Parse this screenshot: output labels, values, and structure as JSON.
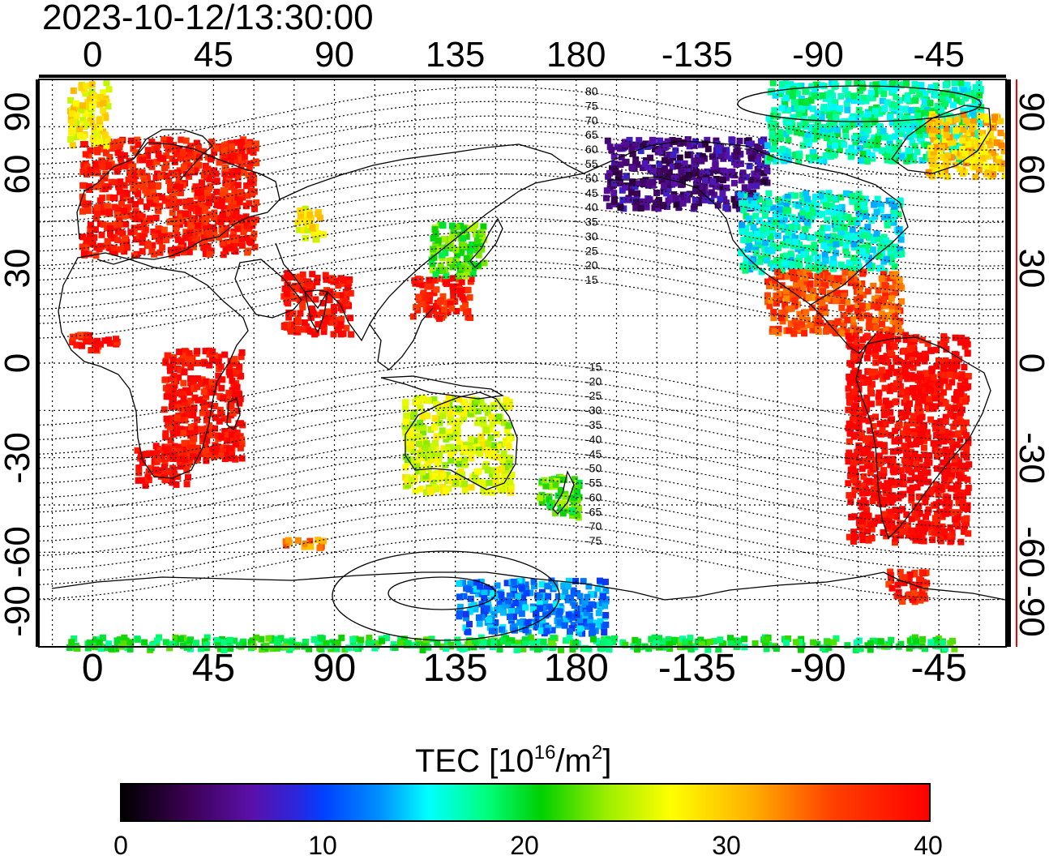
{
  "title": "2023-10-12/13:30:00",
  "lon_ticks": [
    "0",
    "45",
    "90",
    "135",
    "180",
    "-135",
    "-90",
    "-45"
  ],
  "lat_ticks": [
    "90",
    "60",
    "30",
    "0",
    "-30",
    "-60",
    "-90"
  ],
  "mag_lat_labels": [
    "80",
    "75",
    "70",
    "65",
    "60",
    "55",
    "50",
    "45",
    "40",
    "35",
    "30",
    "25",
    "20",
    "15",
    "-15",
    "-20",
    "-25",
    "-30",
    "-35",
    "-40",
    "-45",
    "-50",
    "-55",
    "-60",
    "-65",
    "-70",
    "-75"
  ],
  "colorbar": {
    "title": "TEC  [10",
    "title_exp": "16",
    "title_unit": "/m",
    "title_unit_exp": "2",
    "title_end": "]",
    "ticks": [
      "0",
      "10",
      "20",
      "30",
      "40"
    ],
    "min": 0,
    "max": 40
  },
  "colors": {
    "low": "#000000",
    "blue": "#0040ff",
    "cyan": "#00ffff",
    "green": "#00d000",
    "yellow": "#ffff00",
    "high": "#ff0000",
    "right_axis": "#ff0000"
  },
  "tec_regions": [
    {
      "name": "europe",
      "lon": [
        -5,
        60
      ],
      "lat": [
        35,
        72
      ],
      "tec": 38
    },
    {
      "name": "north-atlantic-arctic",
      "lon": [
        -10,
        5
      ],
      "lat": [
        70,
        90
      ],
      "tec": 28
    },
    {
      "name": "east-asia-south",
      "lon": [
        118,
        140
      ],
      "lat": [
        15,
        28
      ],
      "tec": 38
    },
    {
      "name": "japan",
      "lon": [
        125,
        145
      ],
      "lat": [
        28,
        45
      ],
      "tec": 22
    },
    {
      "name": "alaska-canada-west",
      "lon": [
        -170,
        -110
      ],
      "lat": [
        50,
        72
      ],
      "tec": 5
    },
    {
      "name": "north-america-central",
      "lon": [
        -120,
        -60
      ],
      "lat": [
        30,
        55
      ],
      "tec": 16
    },
    {
      "name": "canada-arctic",
      "lon": [
        -110,
        -30
      ],
      "lat": [
        65,
        90
      ],
      "tec": 17
    },
    {
      "name": "greenland-east",
      "lon": [
        -50,
        -20
      ],
      "lat": [
        60,
        80
      ],
      "tec": 30
    },
    {
      "name": "central-america",
      "lon": [
        -110,
        -60
      ],
      "lat": [
        10,
        30
      ],
      "tec": 35
    },
    {
      "name": "south-america",
      "lon": [
        -80,
        -35
      ],
      "lat": [
        -56,
        10
      ],
      "tec": 40
    },
    {
      "name": "southern-africa",
      "lon": [
        15,
        35
      ],
      "lat": [
        -38,
        -25
      ],
      "tec": 40
    },
    {
      "name": "east-africa",
      "lon": [
        25,
        55
      ],
      "lat": [
        -30,
        5
      ],
      "tec": 39
    },
    {
      "name": "west-africa",
      "lon": [
        -10,
        10
      ],
      "lat": [
        5,
        10
      ],
      "tec": 38
    },
    {
      "name": "india",
      "lon": [
        70,
        95
      ],
      "lat": [
        10,
        30
      ],
      "tec": 39
    },
    {
      "name": "central-asia",
      "lon": [
        75,
        85
      ],
      "lat": [
        40,
        50
      ],
      "tec": 28
    },
    {
      "name": "australia",
      "lon": [
        115,
        155
      ],
      "lat": [
        -40,
        -10
      ],
      "tec": 26
    },
    {
      "name": "new-zealand",
      "lon": [
        165,
        180
      ],
      "lat": [
        -48,
        -35
      ],
      "tec": 22
    },
    {
      "name": "antarctic-pacific",
      "lon": [
        135,
        190
      ],
      "lat": [
        -85,
        -68
      ],
      "tec": 12
    },
    {
      "name": "antarctic-south-pole-band",
      "lon": [
        -10,
        320
      ],
      "lat": [
        -90,
        -86
      ],
      "tec": 20
    },
    {
      "name": "antarctic-peninsula",
      "lon": [
        -65,
        -50
      ],
      "lat": [
        -75,
        -65
      ],
      "tec": 38
    },
    {
      "name": "indian-ocean-islands",
      "lon": [
        70,
        85
      ],
      "lat": [
        -58,
        -55
      ],
      "tec": 33
    }
  ]
}
